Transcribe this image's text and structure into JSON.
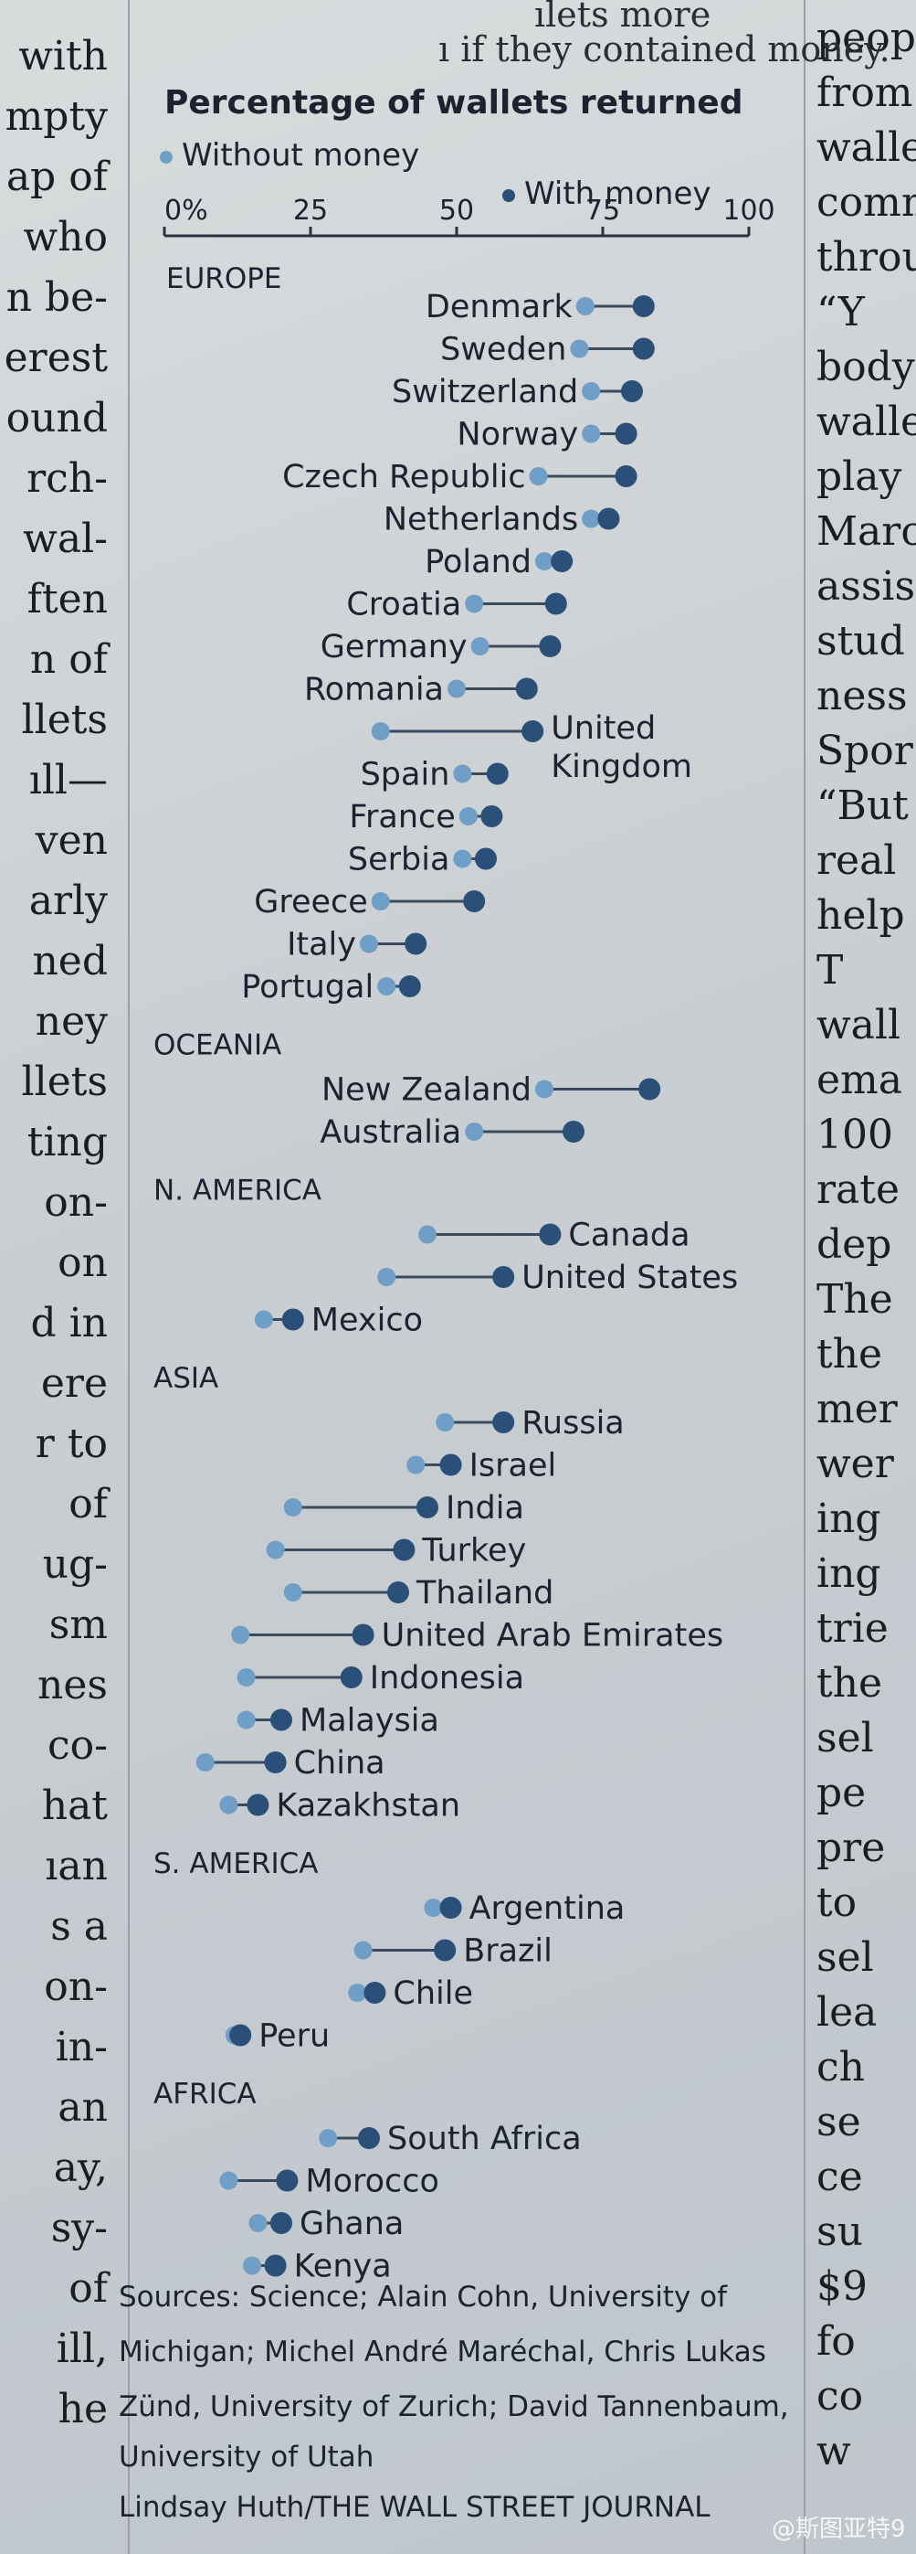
{
  "article": {
    "left_fragments": [
      "with",
      "mpty",
      "ap of",
      "who",
      "n be-",
      "erest",
      "ound",
      "rch-",
      "wal-",
      "ften",
      "n of",
      "llets",
      "ıll—",
      "ven",
      "arly",
      "ned",
      "ney",
      "llets",
      "ting",
      "on-",
      "on",
      "d in",
      "ere",
      "r to",
      "of",
      "ug-",
      "sm",
      "nes",
      "co-",
      "hat",
      "ıan",
      "s a",
      "on-",
      "in-",
      "an",
      "ay,",
      "sy-",
      "of",
      "ill,",
      "he"
    ],
    "right_fragments": [
      "peopl",
      "from",
      "walle",
      "comm",
      "throu",
      "“Y",
      "body",
      "walle",
      "play",
      "Marc",
      "assis",
      "stud",
      "ness",
      "Spor",
      "“But",
      "real",
      "help",
      "T",
      "wall",
      "ema",
      "100",
      "rate",
      "dep",
      "The",
      "the",
      "mer",
      "wer",
      "ing",
      "ing",
      "trie",
      "the",
      "sel",
      "pe",
      "pre",
      "to",
      "sel",
      "lea",
      "ch",
      "se",
      "ce",
      "su",
      "$9",
      "fo",
      "co",
      "w"
    ]
  },
  "caption": {
    "top_text": "ılets more",
    "top_text_2": "ı if they contained money."
  },
  "chart_data": {
    "type": "dot-plot",
    "title": "Percentage of wallets returned",
    "legend": [
      {
        "label": "Without money",
        "color": "#6f9fc6"
      },
      {
        "label": "With money",
        "color": "#2a4f78"
      }
    ],
    "x_ticks": [
      "0%",
      "25",
      "50",
      "75",
      "100"
    ],
    "xlim": [
      0,
      100
    ],
    "groups": [
      {
        "region": "EUROPE",
        "countries": [
          {
            "name": "Denmark",
            "without": 72,
            "with": 82
          },
          {
            "name": "Sweden",
            "without": 71,
            "with": 82
          },
          {
            "name": "Switzerland",
            "without": 73,
            "with": 80
          },
          {
            "name": "Norway",
            "without": 73,
            "with": 79
          },
          {
            "name": "Czech Republic",
            "without": 64,
            "with": 79
          },
          {
            "name": "Netherlands",
            "without": 73,
            "with": 76
          },
          {
            "name": "Poland",
            "without": 65,
            "with": 68
          },
          {
            "name": "Croatia",
            "without": 53,
            "with": 67
          },
          {
            "name": "Germany",
            "without": 54,
            "with": 66
          },
          {
            "name": "Romania",
            "without": 50,
            "with": 62
          },
          {
            "name": "United Kingdom",
            "without": 37,
            "with": 63
          },
          {
            "name": "Spain",
            "without": 51,
            "with": 57
          },
          {
            "name": "France",
            "without": 52,
            "with": 56
          },
          {
            "name": "Serbia",
            "without": 51,
            "with": 55
          },
          {
            "name": "Greece",
            "without": 37,
            "with": 53
          },
          {
            "name": "Italy",
            "without": 35,
            "with": 43
          },
          {
            "name": "Portugal",
            "without": 38,
            "with": 42
          }
        ]
      },
      {
        "region": "OCEANIA",
        "countries": [
          {
            "name": "New Zealand",
            "without": 65,
            "with": 83
          },
          {
            "name": "Australia",
            "without": 53,
            "with": 70
          }
        ]
      },
      {
        "region": "N. AMERICA",
        "countries": [
          {
            "name": "Canada",
            "without": 45,
            "with": 66
          },
          {
            "name": "United States",
            "without": 38,
            "with": 58
          },
          {
            "name": "Mexico",
            "without": 17,
            "with": 22
          }
        ]
      },
      {
        "region": "ASIA",
        "countries": [
          {
            "name": "Russia",
            "without": 48,
            "with": 58
          },
          {
            "name": "Israel",
            "without": 43,
            "with": 49
          },
          {
            "name": "India",
            "without": 22,
            "with": 45
          },
          {
            "name": "Turkey",
            "without": 19,
            "with": 41
          },
          {
            "name": "Thailand",
            "without": 22,
            "with": 40
          },
          {
            "name": "United Arab Emirates",
            "without": 13,
            "with": 34
          },
          {
            "name": "Indonesia",
            "without": 14,
            "with": 32
          },
          {
            "name": "Malaysia",
            "without": 14,
            "with": 20
          },
          {
            "name": "China",
            "without": 7,
            "with": 19
          },
          {
            "name": "Kazakhstan",
            "without": 11,
            "with": 16
          }
        ]
      },
      {
        "region": "S. AMERICA",
        "countries": [
          {
            "name": "Argentina",
            "without": 46,
            "with": 49
          },
          {
            "name": "Brazil",
            "without": 34,
            "with": 48
          },
          {
            "name": "Chile",
            "without": 33,
            "with": 36
          },
          {
            "name": "Peru",
            "without": 12,
            "with": 13
          }
        ]
      },
      {
        "region": "AFRICA",
        "countries": [
          {
            "name": "South Africa",
            "without": 28,
            "with": 35
          },
          {
            "name": "Morocco",
            "without": 11,
            "with": 21
          },
          {
            "name": "Ghana",
            "without": 16,
            "with": 20
          },
          {
            "name": "Kenya",
            "without": 15,
            "with": 19
          }
        ]
      }
    ]
  },
  "sources": {
    "lines": [
      "Sources: Science; Alain Cohn, University of",
      "Michigan; Michel André Maréchal, Chris Lukas",
      "Zünd, University of Zurich; David Tannenbaum,",
      "University of Utah"
    ],
    "credit": "Lindsay Huth/THE WALL STREET JOURNAL"
  },
  "watermark": "@斯图亚特9"
}
